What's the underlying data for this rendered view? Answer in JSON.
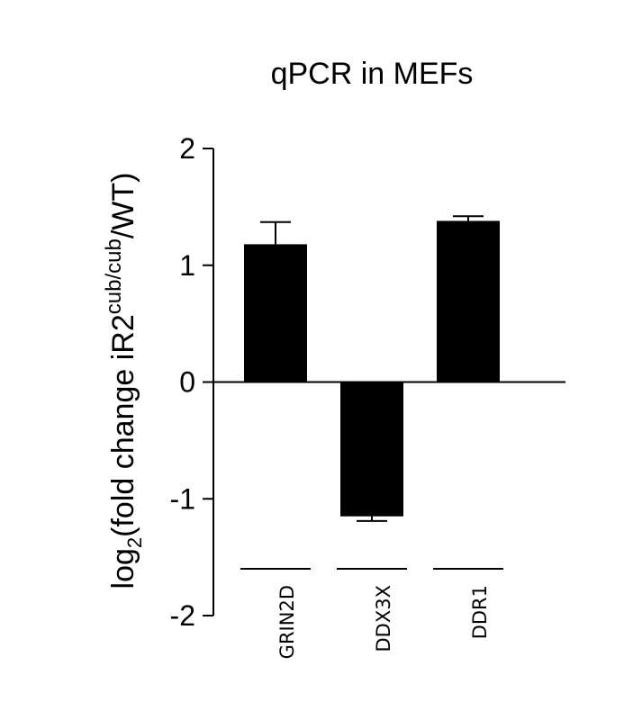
{
  "chart_data": {
    "type": "bar",
    "title": "qPCR in MEFs",
    "ylabel": {
      "prefix": "log",
      "subscript": "2",
      "middle": "(fold change iR2",
      "superscript": "cub/cub",
      "suffix": "/WT)"
    },
    "xlabel": "",
    "categories": [
      "GRIN2D",
      "DDX3X",
      "DDR1"
    ],
    "values": [
      1.18,
      -1.15,
      1.38
    ],
    "errors": [
      0.19,
      0.04,
      0.04
    ],
    "ylim": [
      -2,
      2
    ],
    "yticks": [
      2,
      1,
      0,
      -1,
      -2
    ],
    "ytick_labels": [
      "2",
      "1",
      "0",
      "-1",
      "-2"
    ],
    "bar_color": "#000000",
    "grid": false,
    "legend": "none"
  }
}
